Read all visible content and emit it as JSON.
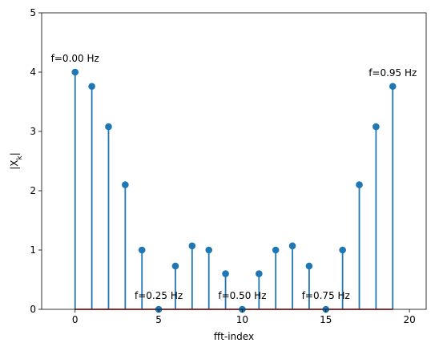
{
  "chart_data": {
    "type": "stem",
    "xlabel": "fft-index",
    "ylabel": "|X",
    "ylabel_sub": "k",
    "ylabel_suffix": "|",
    "xlim": [
      -2,
      21
    ],
    "ylim": [
      0,
      5
    ],
    "x_ticks": [
      0,
      5,
      10,
      15,
      20
    ],
    "y_ticks": [
      0,
      1,
      2,
      3,
      4,
      5
    ],
    "x": [
      0,
      1,
      2,
      3,
      4,
      5,
      6,
      7,
      8,
      9,
      10,
      11,
      12,
      13,
      14,
      15,
      16,
      17,
      18,
      19
    ],
    "values": [
      4.0,
      3.76,
      3.08,
      2.1,
      1.0,
      0.0,
      0.73,
      1.07,
      1.0,
      0.6,
      0.0,
      0.6,
      1.0,
      1.07,
      0.73,
      0.0,
      1.0,
      2.1,
      3.08,
      3.76
    ],
    "stem_color": "#1f77b4",
    "marker_color": "#1f77b4",
    "baseline_color": "#d62728",
    "grid": false,
    "annotations": [
      {
        "text": "f=0.00 Hz",
        "x": 0,
        "y": 4.0
      },
      {
        "text": "f=0.25 Hz",
        "x": 5,
        "y": 0.0
      },
      {
        "text": "f=0.50 Hz",
        "x": 10,
        "y": 0.0
      },
      {
        "text": "f=0.75 Hz",
        "x": 15,
        "y": 0.0
      },
      {
        "text": "f=0.95 Hz",
        "x": 19,
        "y": 3.76
      }
    ]
  }
}
